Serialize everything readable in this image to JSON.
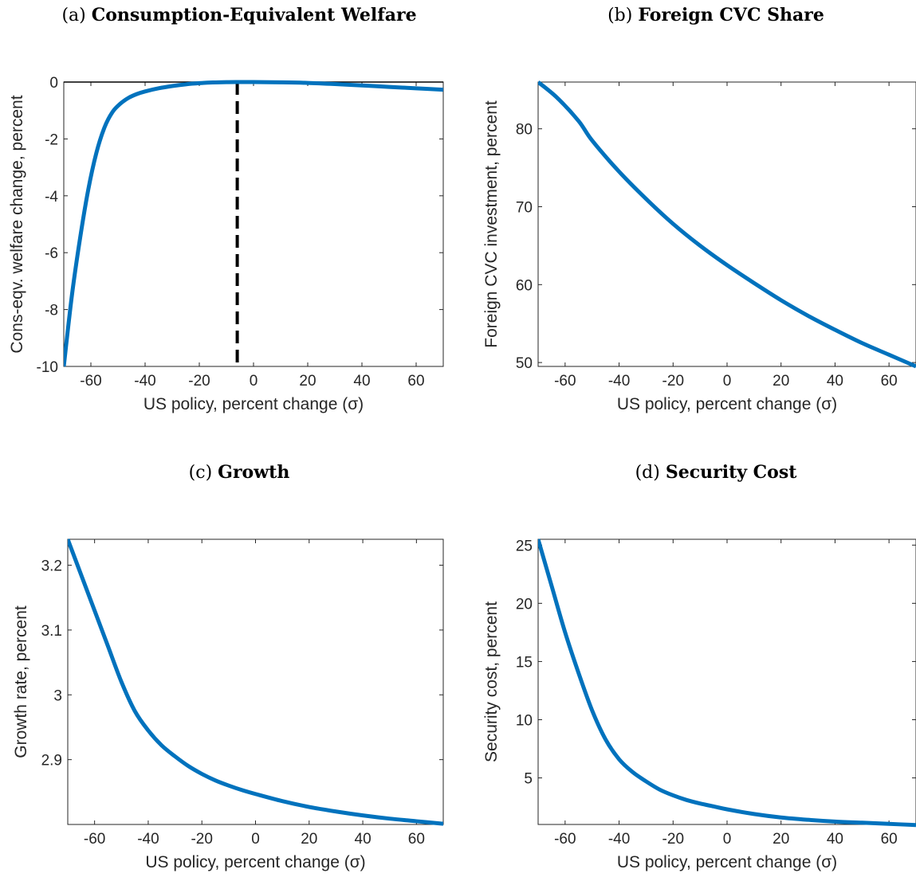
{
  "chart_data": [
    {
      "type": "line",
      "panel_label": "(a)",
      "title": "Consumption-Equivalent Welfare",
      "xlabel": "US policy, percent change (σ)",
      "ylabel": "Cons-eqv. welfare change, percent",
      "xlim": [
        -70,
        70
      ],
      "ylim": [
        -10,
        0
      ],
      "xticks": [
        -60,
        -40,
        -20,
        0,
        20,
        40,
        60
      ],
      "yticks": [
        -10,
        -8,
        -6,
        -4,
        -2,
        0
      ],
      "grid": false,
      "hline": 0,
      "vline": -6,
      "line_color": "#0072BD",
      "x": [
        -70,
        -67,
        -64,
        -61,
        -58,
        -55,
        -52,
        -49,
        -46,
        -43,
        -40,
        -35,
        -30,
        -25,
        -20,
        -15,
        -10,
        -6,
        0,
        10,
        20,
        30,
        40,
        50,
        60,
        70
      ],
      "y": [
        -10.0,
        -7.5,
        -5.5,
        -3.8,
        -2.5,
        -1.6,
        -1.05,
        -0.75,
        -0.55,
        -0.42,
        -0.33,
        -0.22,
        -0.14,
        -0.08,
        -0.04,
        -0.015,
        -0.003,
        0.0,
        0.0,
        -0.01,
        -0.03,
        -0.07,
        -0.12,
        -0.17,
        -0.22,
        -0.27
      ]
    },
    {
      "type": "line",
      "panel_label": "(b)",
      "title": "Foreign CVC Share",
      "xlabel": "US policy, percent change (σ)",
      "ylabel": "Foreign CVC investment, percent",
      "xlim": [
        -70,
        70
      ],
      "ylim": [
        49.5,
        86
      ],
      "xticks": [
        -60,
        -40,
        -20,
        0,
        20,
        40,
        60
      ],
      "yticks": [
        50,
        60,
        70,
        80
      ],
      "grid": false,
      "line_color": "#0072BD",
      "x": [
        -70,
        -63,
        -55,
        -50,
        -40,
        -30,
        -20,
        -10,
        0,
        10,
        20,
        30,
        40,
        50,
        60,
        70
      ],
      "y": [
        86.0,
        84.0,
        81.0,
        78.5,
        74.5,
        71.0,
        67.8,
        65.0,
        62.5,
        60.2,
        58.0,
        56.0,
        54.2,
        52.5,
        51.0,
        49.5
      ]
    },
    {
      "type": "line",
      "panel_label": "(c)",
      "title": "Growth",
      "xlabel": "US policy, percent change (σ)",
      "ylabel": "Growth rate, percent",
      "xlim": [
        -70,
        70
      ],
      "ylim": [
        2.8,
        3.24
      ],
      "xticks": [
        -60,
        -40,
        -20,
        0,
        20,
        40,
        60
      ],
      "yticks": [
        2.9,
        3.0,
        3.1,
        3.2
      ],
      "grid": false,
      "line_color": "#0072BD",
      "x": [
        -70,
        -65,
        -60,
        -55,
        -50,
        -45,
        -40,
        -35,
        -30,
        -25,
        -20,
        -15,
        -10,
        -5,
        0,
        10,
        20,
        30,
        40,
        50,
        60,
        70
      ],
      "y": [
        3.24,
        3.185,
        3.13,
        3.075,
        3.02,
        2.975,
        2.945,
        2.922,
        2.905,
        2.89,
        2.878,
        2.868,
        2.86,
        2.853,
        2.847,
        2.836,
        2.827,
        2.82,
        2.814,
        2.809,
        2.805,
        2.801
      ]
    },
    {
      "type": "line",
      "panel_label": "(d)",
      "title": "Security Cost",
      "xlabel": "US policy, percent change (σ)",
      "ylabel": "Security cost, percent",
      "xlim": [
        -70,
        70
      ],
      "ylim": [
        1,
        25.5
      ],
      "xticks": [
        -60,
        -40,
        -20,
        0,
        20,
        40,
        60
      ],
      "yticks": [
        5,
        10,
        15,
        20,
        25
      ],
      "grid": false,
      "line_color": "#0072BD",
      "x": [
        -70,
        -65,
        -60,
        -55,
        -50,
        -45,
        -40,
        -35,
        -30,
        -25,
        -20,
        -15,
        -10,
        -5,
        0,
        10,
        20,
        30,
        40,
        50,
        60,
        70
      ],
      "y": [
        25.5,
        21.5,
        17.5,
        14.0,
        10.8,
        8.3,
        6.6,
        5.5,
        4.7,
        4.0,
        3.5,
        3.1,
        2.8,
        2.55,
        2.3,
        1.9,
        1.6,
        1.4,
        1.25,
        1.15,
        1.05,
        0.95
      ]
    }
  ]
}
